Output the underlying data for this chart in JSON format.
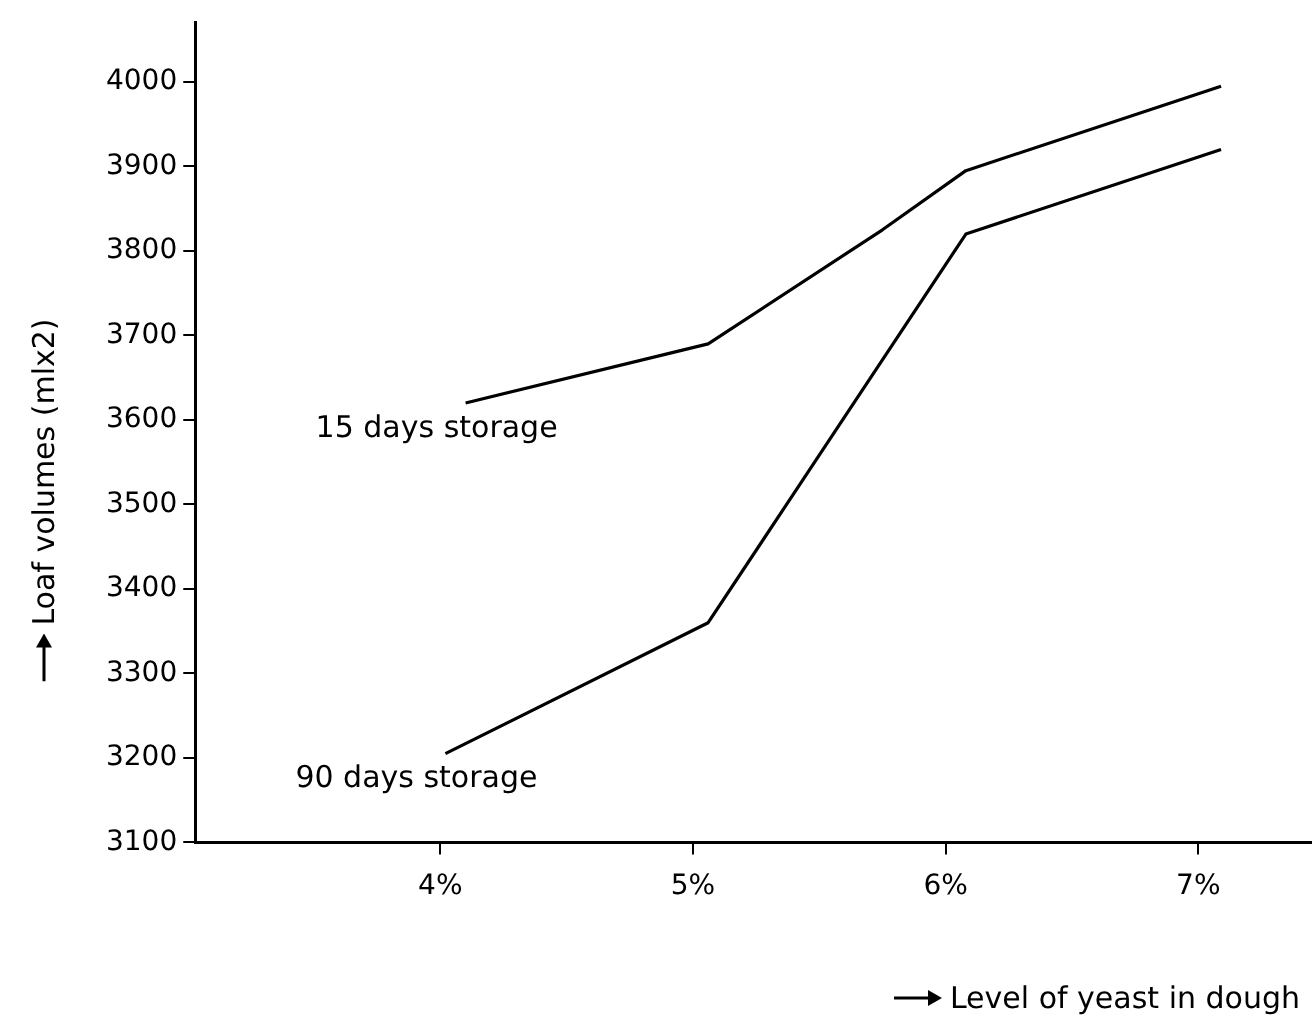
{
  "chart_data": {
    "type": "line",
    "xlabel": "Level of yeast in dough",
    "ylabel": "Loaf volumes (mlx2)",
    "xlim": [
      3.03,
      7.45
    ],
    "ylim": [
      3100,
      4070
    ],
    "xticks": [
      {
        "value": 4,
        "label": "4%"
      },
      {
        "value": 5,
        "label": "5%"
      },
      {
        "value": 6,
        "label": "6%"
      },
      {
        "value": 7,
        "label": "7%"
      }
    ],
    "yticks": [
      3100,
      3200,
      3300,
      3400,
      3500,
      3600,
      3700,
      3800,
      3900,
      4000
    ],
    "grid": false,
    "legend": false,
    "marker": "none",
    "line_style": "solid",
    "series": [
      {
        "name": "15 days storage",
        "color": "#000000",
        "x": [
          4.1,
          5.06,
          5.75,
          6.08,
          7.09
        ],
        "values": [
          3620,
          3690,
          3825,
          3895,
          3995
        ]
      },
      {
        "name": "90 days storage",
        "color": "#000000",
        "x": [
          4.02,
          5.06,
          6.08,
          7.09
        ],
        "values": [
          3205,
          3360,
          3820,
          3920
        ]
      }
    ]
  }
}
